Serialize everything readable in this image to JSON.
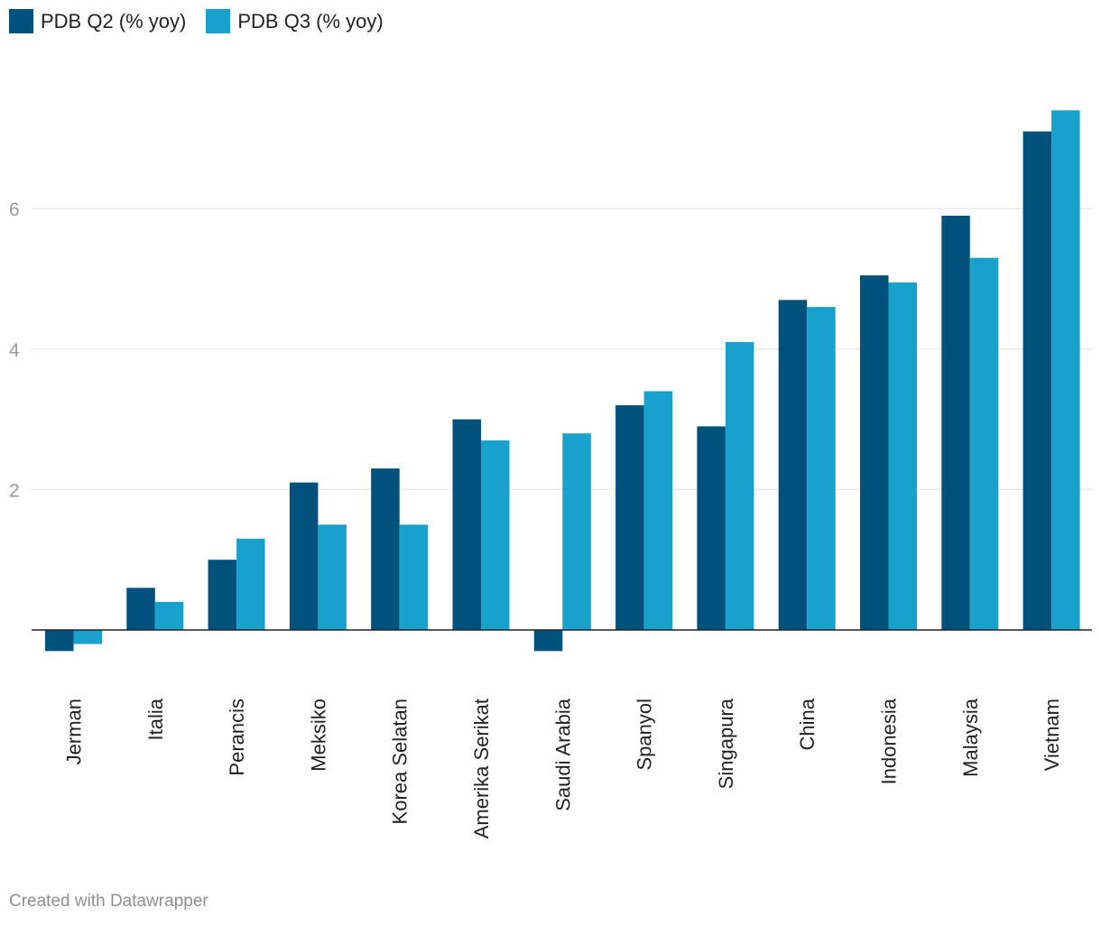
{
  "chart_data": {
    "type": "bar",
    "title": "",
    "xlabel": "",
    "ylabel": "",
    "ylim": [
      -0.6,
      7.9
    ],
    "yticks": [
      2,
      4,
      6
    ],
    "grid": true,
    "legend_position": "top-left",
    "categories": [
      "Jerman",
      "Italia",
      "Perancis",
      "Meksiko",
      "Korea Selatan",
      "Amerika Serikat",
      "Saudi Arabia",
      "Spanyol",
      "Singapura",
      "China",
      "Indonesia",
      "Malaysia",
      "Vietnam"
    ],
    "series": [
      {
        "name": "PDB Q2 (% yoy)",
        "color": "#00527d",
        "values": [
          -0.3,
          0.6,
          1.0,
          2.1,
          2.3,
          3.0,
          -0.3,
          3.2,
          2.9,
          4.7,
          5.05,
          5.9,
          7.1
        ]
      },
      {
        "name": "PDB Q3 (% yoy)",
        "color": "#18a1cd",
        "values": [
          -0.2,
          0.4,
          1.3,
          1.5,
          1.5,
          2.7,
          2.8,
          3.4,
          4.1,
          4.6,
          4.95,
          5.3,
          7.4
        ]
      }
    ]
  },
  "footer": {
    "credit": "Created with Datawrapper"
  }
}
